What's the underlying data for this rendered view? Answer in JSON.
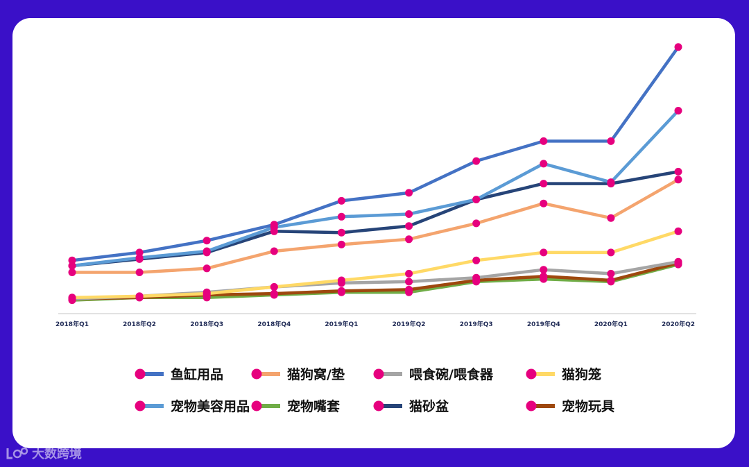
{
  "chart_data": {
    "type": "line",
    "title": "",
    "xlabel": "",
    "ylabel": "",
    "ylim": [
      0,
      100
    ],
    "grid": false,
    "legend_position": "bottom",
    "categories": [
      "2018年Q1",
      "2018年Q2",
      "2018年Q3",
      "2018年Q4",
      "2019年Q1",
      "2019年Q2",
      "2019年Q3",
      "2019年Q4",
      "2020年Q1",
      "2020年Q2"
    ],
    "marker_color": "#e6007e",
    "series": [
      {
        "name": "鱼缸用品",
        "color": "#4472c4",
        "values": [
          18.5,
          21.5,
          26,
          32,
          41,
          44,
          56,
          63.5,
          63.5,
          99
        ]
      },
      {
        "name": "猫狗窝/垫",
        "color": "#f4a46e",
        "values": [
          14,
          14,
          15.5,
          22,
          24.5,
          26.5,
          32.5,
          40,
          34.5,
          49
        ]
      },
      {
        "name": "喂食碗/喂食器",
        "color": "#a5a5a5",
        "values": [
          4,
          5,
          6.5,
          8.5,
          10,
          10.5,
          12,
          15,
          13.5,
          18
        ]
      },
      {
        "name": "猫狗笼",
        "color": "#ffd966",
        "values": [
          4.5,
          5,
          6,
          8.5,
          11,
          13.5,
          18.5,
          21.5,
          21.5,
          29.5
        ]
      },
      {
        "name": "宠物美容用品",
        "color": "#5b9bd5",
        "values": [
          16.5,
          19.5,
          22,
          31,
          35,
          36,
          41.5,
          55,
          48,
          75
        ]
      },
      {
        "name": "宠物嘴套",
        "color": "#70ad47",
        "values": [
          3.5,
          4.5,
          4.5,
          5.5,
          6.5,
          6.5,
          10.5,
          11.5,
          10.5,
          17
        ]
      },
      {
        "name": "猫砂盆",
        "color": "#264478",
        "values": [
          16.5,
          19,
          21.5,
          29.5,
          29,
          31.5,
          41.5,
          47.5,
          47.5,
          52
        ]
      },
      {
        "name": "宠物玩具",
        "color": "#9e480e",
        "values": [
          4,
          4.5,
          5.5,
          6,
          7,
          7.5,
          11,
          12.5,
          11,
          17.5
        ]
      }
    ]
  },
  "watermark": {
    "text": "大数跨境"
  }
}
